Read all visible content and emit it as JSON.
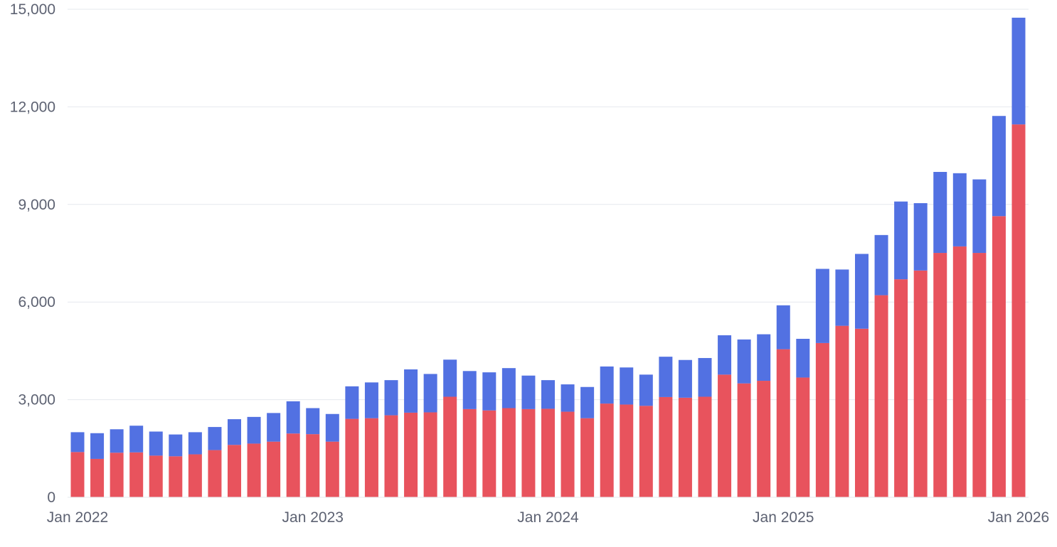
{
  "chart_data": {
    "type": "bar",
    "stacked": true,
    "title": "",
    "xlabel": "",
    "ylabel": "",
    "ylim": [
      0,
      15000
    ],
    "yticks": [
      0,
      3000,
      6000,
      9000,
      12000,
      15000
    ],
    "ytick_labels": [
      "0",
      "3,000",
      "6,000",
      "9,000",
      "12,000",
      "15,000"
    ],
    "grid": true,
    "categories": [
      "2022-01",
      "2022-02",
      "2022-03",
      "2022-04",
      "2022-05",
      "2022-06",
      "2022-07",
      "2022-08",
      "2022-09",
      "2022-10",
      "2022-11",
      "2022-12",
      "2023-01",
      "2023-02",
      "2023-03",
      "2023-04",
      "2023-05",
      "2023-06",
      "2023-07",
      "2023-08",
      "2023-09",
      "2023-10",
      "2023-11",
      "2023-12",
      "2024-01",
      "2024-02",
      "2024-03",
      "2024-04",
      "2024-05",
      "2024-06",
      "2024-07",
      "2024-08",
      "2024-09",
      "2024-10",
      "2024-11",
      "2024-12",
      "2025-01",
      "2025-02",
      "2025-03",
      "2025-04",
      "2025-05",
      "2025-06",
      "2025-07",
      "2025-08",
      "2025-09",
      "2025-10",
      "2025-11",
      "2025-12",
      "2026-01"
    ],
    "xtick_labels": [
      {
        "index": 0,
        "label": "Jan 2022"
      },
      {
        "index": 12,
        "label": "Jan 2023"
      },
      {
        "index": 24,
        "label": "Jan 2024"
      },
      {
        "index": 36,
        "label": "Jan 2025"
      },
      {
        "index": 48,
        "label": "Jan 2026"
      }
    ],
    "series": [
      {
        "name": "red",
        "color": "#e8535d",
        "values": [
          1390,
          1180,
          1370,
          1380,
          1280,
          1260,
          1320,
          1450,
          1610,
          1650,
          1710,
          1960,
          1940,
          1710,
          2410,
          2430,
          2520,
          2600,
          2610,
          3090,
          2710,
          2670,
          2740,
          2710,
          2720,
          2630,
          2430,
          2880,
          2850,
          2810,
          3080,
          3060,
          3090,
          3770,
          3500,
          3580,
          4550,
          3680,
          4740,
          5270,
          5180,
          6210,
          6700,
          6970,
          7510,
          7710,
          7510,
          8640,
          11460
        ]
      },
      {
        "name": "blue",
        "color": "#5271e2",
        "values": [
          610,
          790,
          720,
          820,
          740,
          670,
          680,
          710,
          790,
          820,
          880,
          990,
          800,
          850,
          1000,
          1100,
          1080,
          1330,
          1180,
          1140,
          1170,
          1170,
          1230,
          1030,
          880,
          840,
          960,
          1140,
          1140,
          960,
          1240,
          1160,
          1190,
          1210,
          1350,
          1430,
          1350,
          1190,
          2280,
          1730,
          2300,
          1850,
          2390,
          2070,
          2490,
          2250,
          2260,
          3080,
          3280
        ]
      }
    ]
  }
}
